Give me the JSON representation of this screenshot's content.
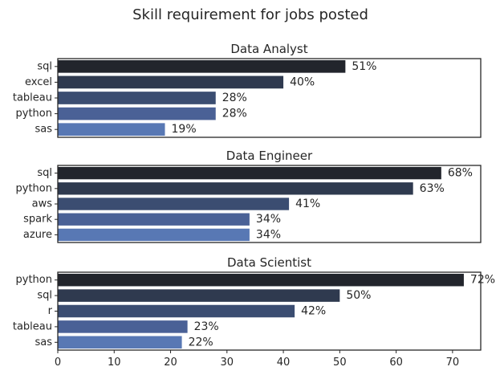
{
  "figure": {
    "suptitle": "Skill requirement for jobs posted"
  },
  "chart_data": [
    {
      "type": "bar",
      "orientation": "horizontal",
      "title": "Data Analyst",
      "categories": [
        "sql",
        "excel",
        "tableau",
        "python",
        "sas"
      ],
      "values": [
        51,
        40,
        28,
        28,
        19
      ],
      "value_labels": [
        "51%",
        "40%",
        "28%",
        "28%",
        "19%"
      ],
      "xlim": [
        0,
        75
      ],
      "show_xticks": false
    },
    {
      "type": "bar",
      "orientation": "horizontal",
      "title": "Data Engineer",
      "categories": [
        "sql",
        "python",
        "aws",
        "spark",
        "azure"
      ],
      "values": [
        68,
        63,
        41,
        34,
        34
      ],
      "value_labels": [
        "68%",
        "63%",
        "41%",
        "34%",
        "34%"
      ],
      "xlim": [
        0,
        75
      ],
      "show_xticks": false
    },
    {
      "type": "bar",
      "orientation": "horizontal",
      "title": "Data Scientist",
      "categories": [
        "python",
        "sql",
        "r",
        "tableau",
        "sas"
      ],
      "values": [
        72,
        50,
        42,
        23,
        22
      ],
      "value_labels": [
        "72%",
        "50%",
        "42%",
        "23%",
        "22%"
      ],
      "xlim": [
        0,
        75
      ],
      "show_xticks": true,
      "xticks": [
        0,
        10,
        20,
        30,
        40,
        50,
        60,
        70
      ]
    }
  ],
  "palette": [
    "#22252c",
    "#2f3a4f",
    "#3b4d71",
    "#4a6196",
    "#5878b4"
  ],
  "grid": false
}
